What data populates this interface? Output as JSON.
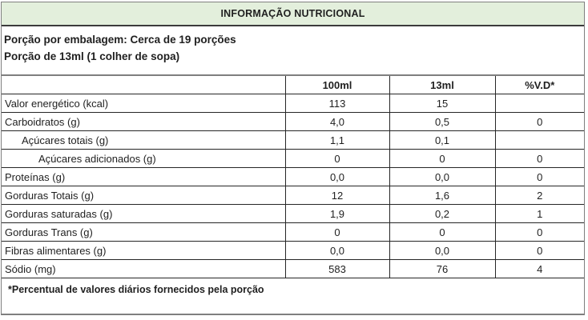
{
  "title": "INFORMAÇÃO NUTRICIONAL",
  "serving_info": {
    "line1": "Porção por embalagem: Cerca de 19 porções",
    "line2": "Porção de 13ml (1 colher de sopa)"
  },
  "table": {
    "columns": [
      "",
      "100ml",
      "13ml",
      "%V.D*"
    ],
    "rows": [
      {
        "label": "Valor energético (kcal)",
        "indent": 0,
        "v100": "113",
        "v13": "15",
        "vd": ""
      },
      {
        "label": "Carboidratos (g)",
        "indent": 0,
        "v100": "4,0",
        "v13": "0,5",
        "vd": "0"
      },
      {
        "label": "Açúcares totais (g)",
        "indent": 1,
        "v100": "1,1",
        "v13": "0,1",
        "vd": ""
      },
      {
        "label": "Açúcares adicionados (g)",
        "indent": 2,
        "v100": "0",
        "v13": "0",
        "vd": "0"
      },
      {
        "label": "Proteínas (g)",
        "indent": 0,
        "v100": "0,0",
        "v13": "0,0",
        "vd": "0"
      },
      {
        "label": "Gorduras Totais (g)",
        "indent": 0,
        "v100": "12",
        "v13": "1,6",
        "vd": "2"
      },
      {
        "label": "Gorduras saturadas (g)",
        "indent": 0,
        "v100": "1,9",
        "v13": "0,2",
        "vd": "1"
      },
      {
        "label": "Gorduras Trans (g)",
        "indent": 0,
        "v100": "0",
        "v13": "0",
        "vd": "0"
      },
      {
        "label": "Fibras alimentares (g)",
        "indent": 0,
        "v100": "0,0",
        "v13": "0,0",
        "vd": "0"
      },
      {
        "label": "Sódio (mg)",
        "indent": 0,
        "v100": "583",
        "v13": "76",
        "vd": "4"
      }
    ]
  },
  "footnote": "*Percentual de valores diários fornecidos pela porção",
  "colors": {
    "header_bg": "#e3efdc",
    "border_outer": "#7f7f7f",
    "line_dark": "#3b3b3b",
    "line_thin": "#262626"
  }
}
